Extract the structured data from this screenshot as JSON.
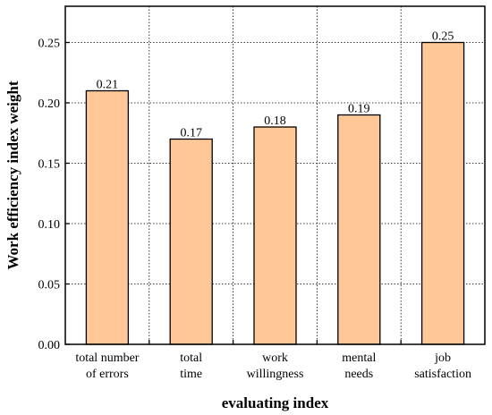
{
  "chart_data": {
    "type": "bar",
    "categories": [
      [
        "total number",
        "of errors"
      ],
      [
        "total",
        "time"
      ],
      [
        "work",
        "willingness"
      ],
      [
        "mental",
        "needs"
      ],
      [
        "job",
        "satisfaction"
      ]
    ],
    "values": [
      0.21,
      0.17,
      0.18,
      0.19,
      0.25
    ],
    "data_labels": [
      "0.21",
      "0.17",
      "0.18",
      "0.19",
      "0.25"
    ],
    "xlabel": "evaluating index",
    "ylabel": "Work efficiency index weight",
    "ylim": [
      0,
      0.28
    ],
    "yticks": [
      0.0,
      0.05,
      0.1,
      0.15,
      0.2,
      0.25
    ],
    "ytick_labels": [
      "0.00",
      "0.05",
      "0.10",
      "0.15",
      "0.20",
      "0.25"
    ],
    "grid": true,
    "grid_style": "dotted",
    "bar_color": "#FFC896",
    "bar_edge_color": "#000000"
  }
}
